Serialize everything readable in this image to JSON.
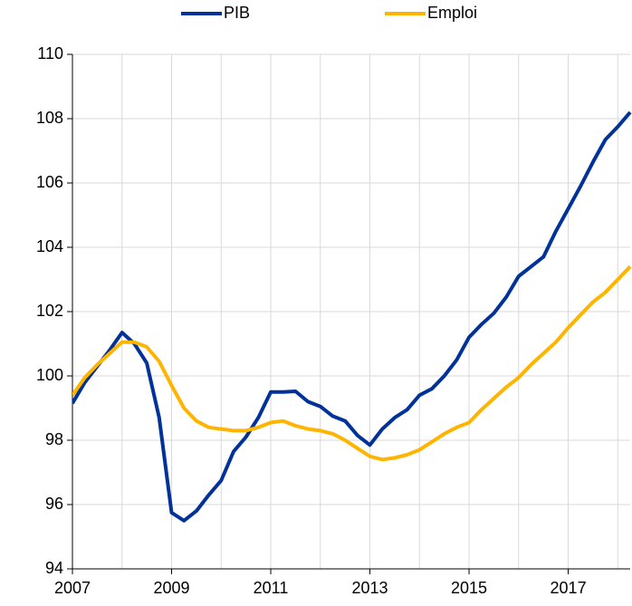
{
  "chart_data": {
    "type": "line",
    "x": [
      2007,
      2007.25,
      2007.5,
      2007.75,
      2008,
      2008.25,
      2008.5,
      2008.75,
      2009,
      2009.25,
      2009.5,
      2009.75,
      2010,
      2010.25,
      2010.5,
      2010.75,
      2011,
      2011.25,
      2011.5,
      2011.75,
      2012,
      2012.25,
      2012.5,
      2012.75,
      2013,
      2013.25,
      2013.5,
      2013.75,
      2014,
      2014.25,
      2014.5,
      2014.75,
      2015,
      2015.25,
      2015.5,
      2015.75,
      2016,
      2016.25,
      2016.5,
      2016.75,
      2017,
      2017.25,
      2017.5,
      2017.75,
      2018,
      2018.25
    ],
    "series": [
      {
        "name": "PIB",
        "color": "#003299",
        "values": [
          99.15,
          99.8,
          100.3,
          100.8,
          101.35,
          101.0,
          100.4,
          98.7,
          95.75,
          95.5,
          95.8,
          96.3,
          96.75,
          97.65,
          98.1,
          98.7,
          99.5,
          99.5,
          99.52,
          99.2,
          99.05,
          98.75,
          98.6,
          98.15,
          97.85,
          98.35,
          98.7,
          98.95,
          99.4,
          99.6,
          100.0,
          100.5,
          101.2,
          101.6,
          101.95,
          102.45,
          103.1,
          103.4,
          103.7,
          104.5,
          105.2,
          105.9,
          106.65,
          107.35,
          107.75,
          108.2
        ]
      },
      {
        "name": "Emploi",
        "color": "#ffb400",
        "values": [
          99.4,
          99.95,
          100.35,
          100.7,
          101.05,
          101.05,
          100.9,
          100.45,
          99.7,
          99.0,
          98.6,
          98.4,
          98.35,
          98.3,
          98.3,
          98.4,
          98.55,
          98.6,
          98.45,
          98.35,
          98.3,
          98.2,
          98.0,
          97.75,
          97.5,
          97.4,
          97.45,
          97.55,
          97.7,
          97.95,
          98.2,
          98.4,
          98.55,
          98.95,
          99.3,
          99.65,
          99.95,
          100.35,
          100.7,
          101.05,
          101.5,
          101.9,
          102.3,
          102.6,
          103.0,
          103.4
        ]
      }
    ],
    "xlim": [
      2007,
      2018.25
    ],
    "xticks": [
      2007,
      2009,
      2011,
      2013,
      2015,
      2017
    ],
    "xgrid": [
      2008,
      2009,
      2010,
      2011,
      2012,
      2013,
      2014,
      2015,
      2016,
      2017,
      2018
    ],
    "ylim": [
      94,
      110
    ],
    "yticks": [
      94,
      96,
      98,
      100,
      102,
      104,
      106,
      108,
      110
    ],
    "grid": true,
    "legend": "top"
  }
}
